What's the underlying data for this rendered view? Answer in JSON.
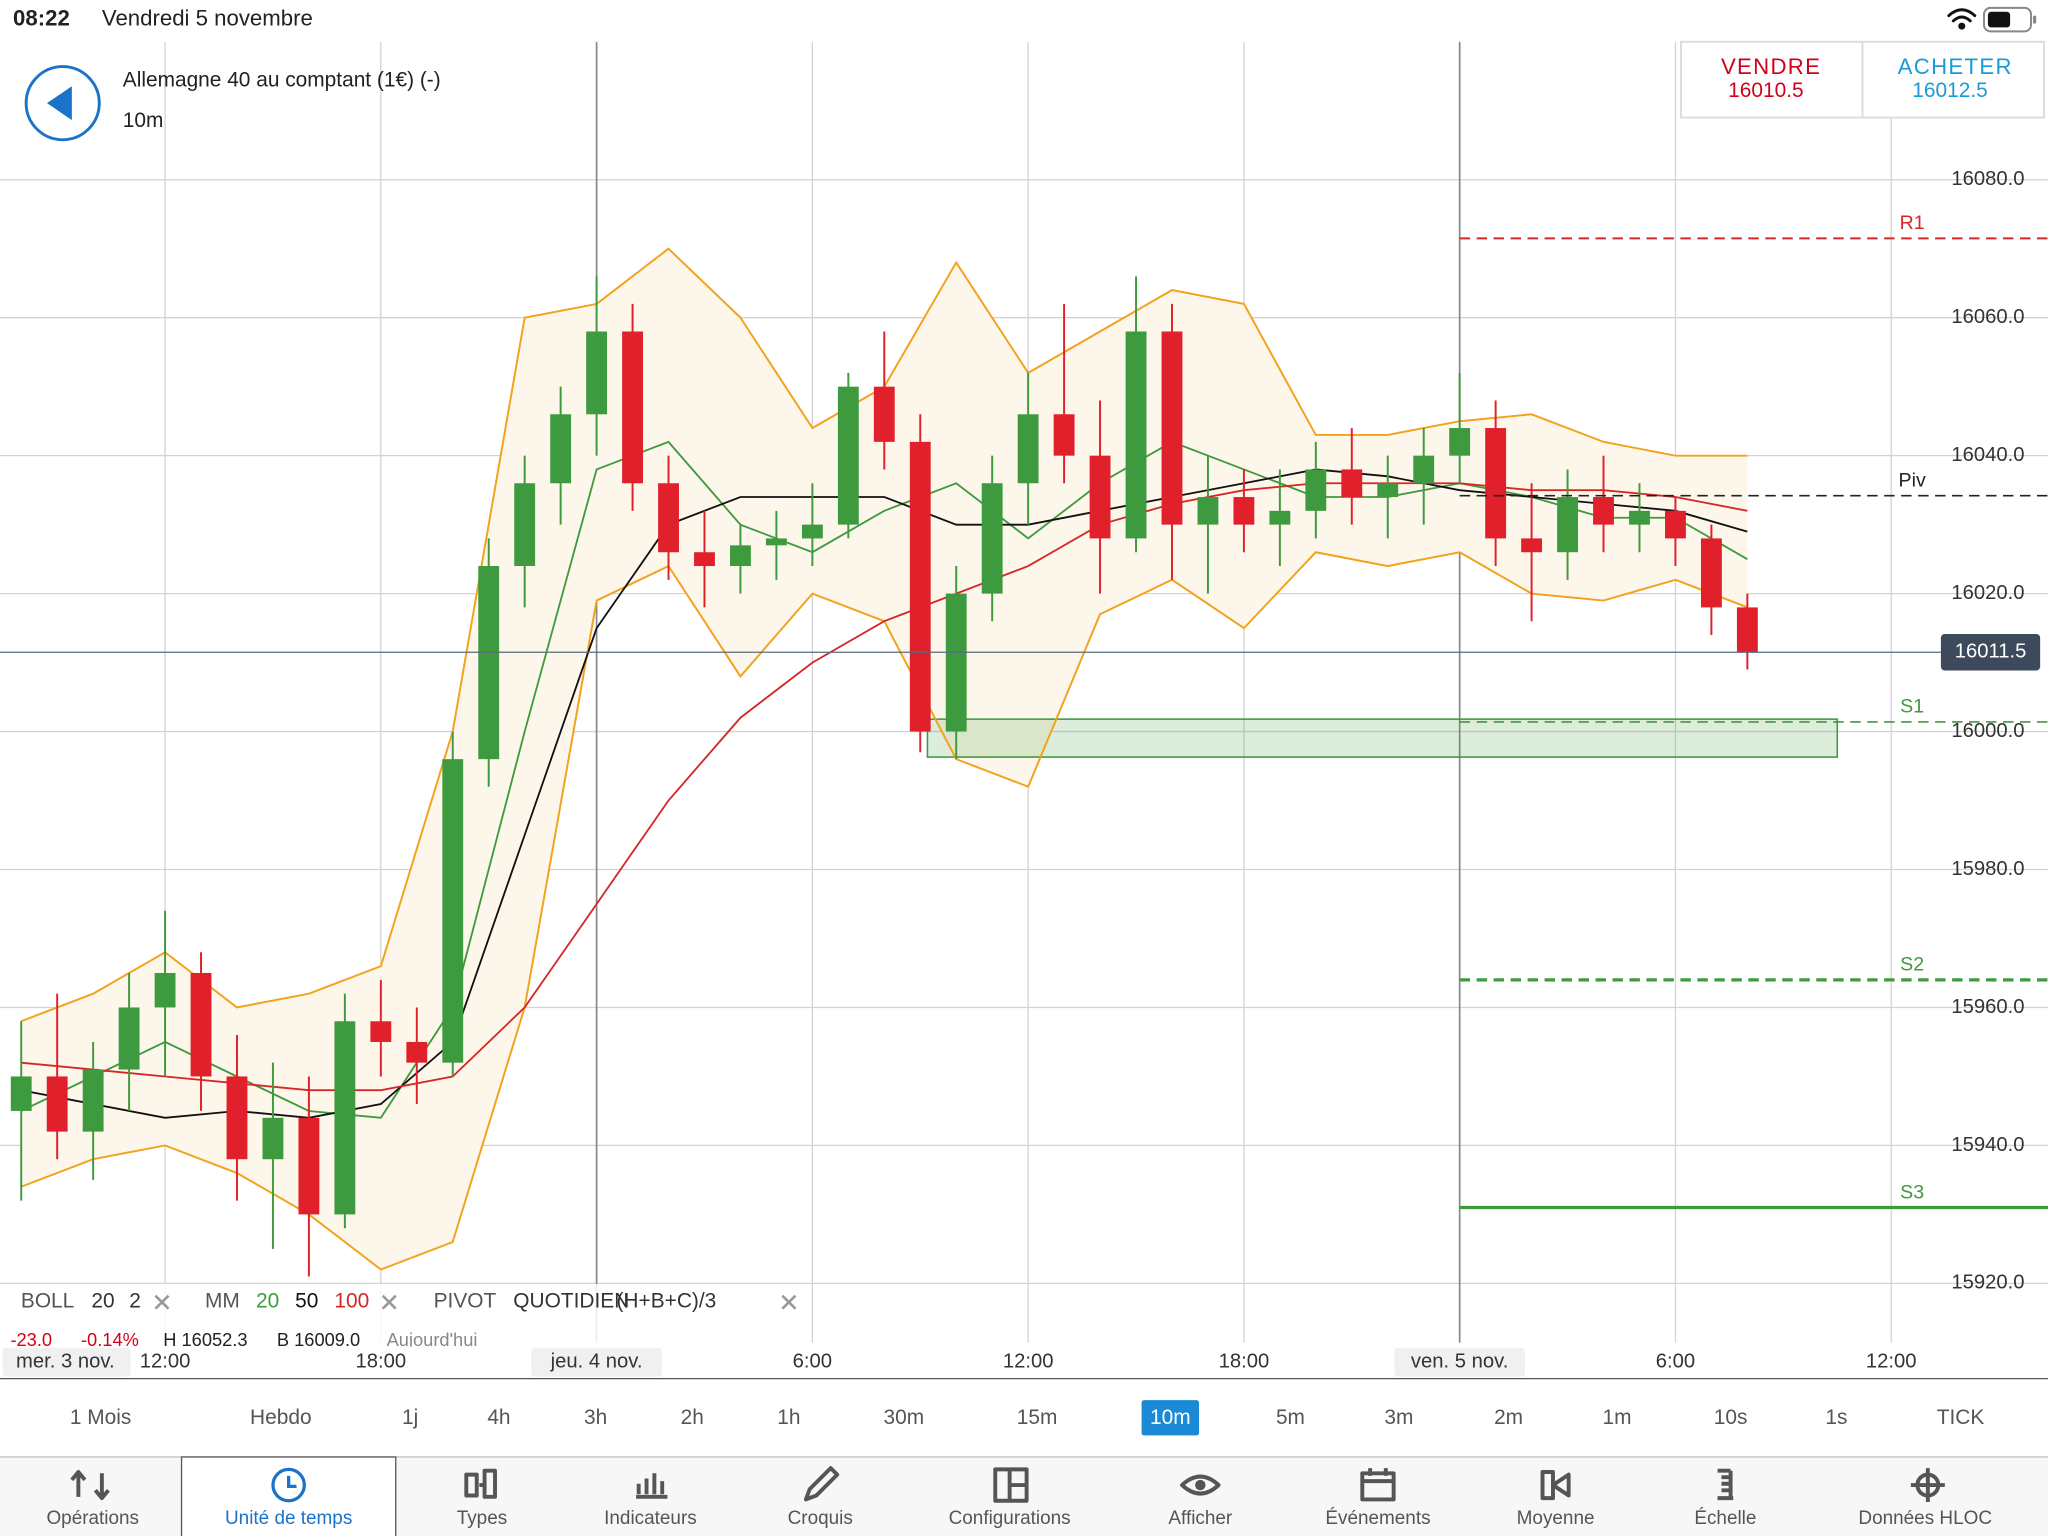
{
  "status_bar": {
    "time": "08:22",
    "date": "Vendredi 5 novembre"
  },
  "header": {
    "instrument": "Allemagne 40 au comptant (1€) (-)",
    "timeframe": "10m"
  },
  "quote": {
    "sell_label": "VENDRE",
    "sell": 16010.5,
    "buy_label": "ACHETER",
    "buy": 16012.5
  },
  "chart_data": {
    "type": "candlestick",
    "x": [
      8,
      9,
      10,
      11,
      12,
      13,
      14,
      15,
      16,
      17,
      18,
      19,
      20,
      21,
      22,
      23,
      24,
      25,
      26,
      27,
      28,
      29,
      30,
      31,
      32,
      33,
      34,
      35,
      36,
      37,
      38,
      39,
      40,
      41,
      42,
      43,
      44,
      45,
      46,
      47,
      48,
      49,
      50,
      51,
      52,
      53,
      54,
      55,
      56
    ],
    "open": [
      15945,
      15950,
      15942,
      15951,
      15960,
      15965,
      15950,
      15938,
      15944,
      15930,
      15958,
      15955,
      15952,
      15996,
      16024,
      16036,
      16046,
      16058,
      16036,
      16026,
      16024,
      16027,
      16028,
      16030,
      16050,
      16042,
      16000,
      16020,
      16036,
      16046,
      16040,
      16028,
      16058,
      16030,
      16034,
      16030,
      16032,
      16038,
      16034,
      16036,
      16040,
      16044,
      16028,
      16026,
      16034,
      16030,
      16032,
      16028,
      16018
    ],
    "high": [
      15958,
      15962,
      15955,
      15965,
      15974,
      15968,
      15956,
      15952,
      15950,
      15962,
      15964,
      15960,
      16000,
      16028,
      16040,
      16050,
      16066,
      16062,
      16040,
      16032,
      16030,
      16032,
      16036,
      16052,
      16058,
      16046,
      16024,
      16040,
      16052,
      16062,
      16048,
      16066,
      16062,
      16040,
      16038,
      16038,
      16042,
      16044,
      16040,
      16044,
      16052,
      16048,
      16036,
      16038,
      16040,
      16036,
      16034,
      16030,
      16020
    ],
    "low": [
      15932,
      15938,
      15935,
      15945,
      15950,
      15945,
      15932,
      15925,
      15921,
      15928,
      15950,
      15946,
      15950,
      15992,
      16018,
      16030,
      16040,
      16032,
      16022,
      16018,
      16020,
      16022,
      16024,
      16028,
      16038,
      15997,
      15996,
      16016,
      16030,
      16036,
      16020,
      16026,
      16022,
      16020,
      16026,
      16024,
      16028,
      16030,
      16028,
      16030,
      16036,
      16024,
      16016,
      16022,
      16026,
      16026,
      16024,
      16014,
      16009
    ],
    "close": [
      15950,
      15942,
      15951,
      15960,
      15965,
      15950,
      15938,
      15944,
      15930,
      15958,
      15955,
      15952,
      15996,
      16024,
      16036,
      16046,
      16058,
      16036,
      16026,
      16024,
      16027,
      16028,
      16030,
      16050,
      16042,
      16000,
      16020,
      16036,
      16046,
      16040,
      16028,
      16058,
      16030,
      16034,
      16030,
      16032,
      16038,
      16034,
      16036,
      16040,
      16044,
      16028,
      16026,
      16034,
      16030,
      16032,
      16028,
      16018,
      16011.5
    ],
    "up_color": "#3e9a3e",
    "down_color": "#e0202a",
    "xlim": [
      7.41,
      64.36
    ],
    "xticks": [
      {
        "value": 12,
        "label": "12:00"
      },
      {
        "value": 18,
        "label": "18:00"
      },
      {
        "value": 24,
        "label": "jeu. 4 nov."
      },
      {
        "value": 30,
        "label": "6:00"
      },
      {
        "value": 36,
        "label": "12:00"
      },
      {
        "value": 42,
        "label": "18:00"
      },
      {
        "value": 48,
        "label": "ven. 5 nov."
      },
      {
        "value": 54,
        "label": "6:00"
      },
      {
        "value": 60,
        "label": "12:00"
      }
    ],
    "x_start_label": "mer. 3 nov.",
    "ylim": [
      15911.4,
      16100
    ],
    "yticks": [
      {
        "value": 15920,
        "label": "15920.0"
      },
      {
        "value": 15940,
        "label": "15940.0"
      },
      {
        "value": 15960,
        "label": "15960.0"
      },
      {
        "value": 15980,
        "label": "15980.0"
      },
      {
        "value": 16000,
        "label": "16000.0"
      },
      {
        "value": 16020,
        "label": "16020.0"
      },
      {
        "value": 16040,
        "label": "16040.0"
      },
      {
        "value": 16060,
        "label": "16060.0"
      },
      {
        "value": 16080,
        "label": "16080.0"
      }
    ],
    "grid": true,
    "lines_x": [
      8,
      10,
      12,
      14,
      16,
      18,
      20,
      22,
      24,
      26,
      28,
      30,
      32,
      34,
      36,
      38,
      40,
      42,
      44,
      46,
      48,
      50,
      52,
      54,
      56
    ],
    "bollinger": {
      "name": "BOLL",
      "period": 20,
      "width": 2,
      "color": "#f2a21c",
      "fill": "#fdf6ea",
      "upper": [
        15958,
        15962,
        15968,
        15960,
        15962,
        15966,
        16000,
        16060,
        16062,
        16070,
        16060,
        16044,
        16050,
        16068,
        16052,
        16058,
        16064,
        16062,
        16043,
        16043,
        16045,
        16046,
        16042,
        16040,
        16040
      ],
      "lower": [
        15934,
        15938,
        15940,
        15936,
        15930,
        15922,
        15926,
        15960,
        16019,
        16024,
        16008,
        16020,
        16016,
        15996,
        15992,
        16017,
        16022,
        16015,
        16026,
        16024,
        16026,
        16020,
        16019,
        16022,
        16018
      ]
    },
    "ma_name": "MM",
    "moving_averages": [
      {
        "period": 20,
        "color": "#3e9a3e",
        "values": [
          15945,
          15950,
          15955,
          15950,
          15945,
          15944,
          15960,
          16000,
          16038,
          16042,
          16030,
          16026,
          16032,
          16036,
          16028,
          16036,
          16042,
          16038,
          16034,
          16034,
          16036,
          16034,
          16031,
          16031,
          16025
        ]
      },
      {
        "period": 50,
        "color": "#111111",
        "values": [
          15948,
          15946,
          15944,
          15945,
          15944,
          15946,
          15955,
          15985,
          16015,
          16030,
          16034,
          16034,
          16034,
          16030,
          16030,
          16032,
          16034,
          16036,
          16038,
          16037,
          16035,
          16034,
          16033,
          16032,
          16029
        ]
      },
      {
        "period": 100,
        "color": "#d62728",
        "values": [
          15952,
          15951,
          15950,
          15949,
          15948,
          15948,
          15950,
          15960,
          15975,
          15990,
          16002,
          16010,
          16016,
          16020,
          16024,
          16030,
          16033,
          16035,
          16036,
          16036,
          16036,
          16035,
          16035,
          16034,
          16032
        ]
      }
    ],
    "pivot_name": "PIVOT",
    "pivot_type": "QUOTIDIEN",
    "pivot_formula": "(H+B+C)/3",
    "pivot_start": 48,
    "pivots": [
      {
        "label": "R1",
        "value": 16071.5,
        "color": "#d62728",
        "dashed": true,
        "width": 1.5
      },
      {
        "label": "Piv",
        "value": 16034.2,
        "color": "#222222",
        "dashed": true,
        "width": 1.2
      },
      {
        "label": "S1",
        "value": 16001.4,
        "color": "#3e9a3e",
        "dashed": true,
        "width": 1.2
      },
      {
        "label": "S2",
        "value": 15964,
        "color": "#3e9a3e",
        "dashed": true,
        "width": 2.5
      },
      {
        "label": "S3",
        "value": 15931,
        "color": "#3e9a3e",
        "dashed": false,
        "width": 2.5
      }
    ],
    "zone": {
      "x": [
        33.2,
        58.5
      ],
      "y": [
        15996.3,
        16001.8
      ],
      "color": "#3e9a3e"
    },
    "last_price": 16011.5
  },
  "stats": [
    "-23.0",
    "-0.14%",
    "H 16052.3",
    "B 16009.0",
    "Aujourd'hui"
  ],
  "timeframes": {
    "options": [
      "1 Mois",
      "Hebdo",
      "1j",
      "4h",
      "3h",
      "2h",
      "1h",
      "30m",
      "15m",
      "10m",
      "5m",
      "3m",
      "2m",
      "1m",
      "10s",
      "1s",
      "TICK"
    ],
    "selected": 9
  },
  "tabs": {
    "items": [
      "Opérations",
      "Unité de temps",
      "Types",
      "Indicateurs",
      "Croquis",
      "Configurations",
      "Afficher",
      "Événements",
      "Moyenne",
      "Échelle",
      "Données HLOC"
    ],
    "selected": 1
  }
}
